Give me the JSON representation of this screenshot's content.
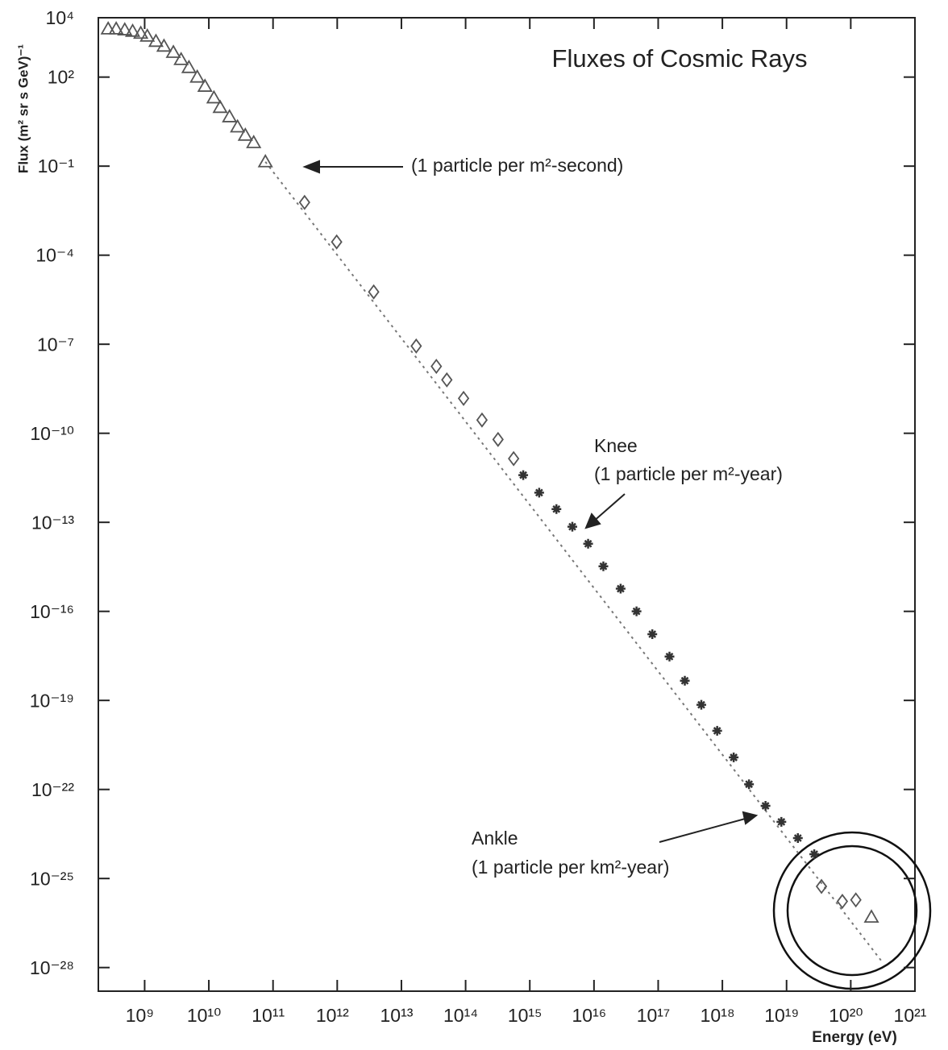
{
  "chart_data": {
    "type": "scatter",
    "title": "Fluxes of Cosmic Rays",
    "x_label": "Energy (eV)",
    "y_label": "Flux (m² sr s GeV)⁻¹",
    "log_x": true,
    "log_y": true,
    "xlim": [
      190000000.0,
      1e+21
    ],
    "ylim": [
      1.6e-29,
      10000.0
    ],
    "xticks": [
      {
        "value": 1000000000.0,
        "label": "10⁹"
      },
      {
        "value": 10000000000.0,
        "label": "10¹⁰"
      },
      {
        "value": 100000000000.0,
        "label": "10¹¹"
      },
      {
        "value": 1000000000000.0,
        "label": "10¹²"
      },
      {
        "value": 10000000000000.0,
        "label": "10¹³"
      },
      {
        "value": 100000000000000.0,
        "label": "10¹⁴"
      },
      {
        "value": 1000000000000000.0,
        "label": "10¹⁵"
      },
      {
        "value": 1e+16,
        "label": "10¹⁶"
      },
      {
        "value": 1e+17,
        "label": "10¹⁷"
      },
      {
        "value": 1e+18,
        "label": "10¹⁸"
      },
      {
        "value": 1e+19,
        "label": "10¹⁹"
      },
      {
        "value": 1e+20,
        "label": "10²⁰"
      },
      {
        "value": 1e+21,
        "label": "10²¹"
      }
    ],
    "yticks": [
      {
        "value": 10000.0,
        "label": "10⁴"
      },
      {
        "value": 100.0,
        "label": "10²"
      },
      {
        "value": 0.1,
        "label": "10⁻¹"
      },
      {
        "value": 0.0001,
        "label": "10⁻⁴"
      },
      {
        "value": 1e-07,
        "label": "10⁻⁷"
      },
      {
        "value": 1e-10,
        "label": "10⁻¹⁰"
      },
      {
        "value": 1e-13,
        "label": "10⁻¹³"
      },
      {
        "value": 1e-16,
        "label": "10⁻¹⁶"
      },
      {
        "value": 1e-19,
        "label": "10⁻¹⁹"
      },
      {
        "value": 1e-22,
        "label": "10⁻²²"
      },
      {
        "value": 1e-25,
        "label": "10⁻²⁵"
      },
      {
        "value": 1e-28,
        "label": "10⁻²⁸"
      }
    ],
    "series": [
      {
        "marker": "triangle",
        "color": "#555555",
        "x": [
          270000000.0,
          360000000.0,
          490000000.0,
          650000000.0,
          870000000.0,
          1100000000.0,
          1500000000.0,
          2000000000.0,
          2800000000.0,
          3700000000.0,
          4900000000.0,
          6600000000.0,
          8700000000.0,
          12000000000.0,
          15000000000.0,
          21000000000.0,
          28000000000.0,
          37000000000.0,
          50000000000.0,
          76000000000.0,
          2.1e+20
        ],
        "values": [
          4200,
          4200,
          3900,
          3500,
          3000,
          2400,
          1600,
          1100,
          680,
          390,
          210,
          100,
          49,
          20,
          9.5,
          4.6,
          2.1,
          1.1,
          0.62,
          0.14,
          5e-27
        ]
      },
      {
        "marker": "diamond",
        "color": "#555555",
        "x": [
          310000000000.0,
          980000000000.0,
          3700000000000.0,
          17000000000000.0,
          35000000000000.0,
          51000000000000.0,
          93000000000000.0,
          180000000000000.0,
          320000000000000.0,
          560000000000000.0,
          3.5e+19,
          7.4e+19,
          1.2e+20
        ],
        "values": [
          0.006,
          0.00028,
          5.8e-06,
          8.7e-08,
          1.8e-08,
          6.3e-09,
          1.5e-09,
          2.8e-10,
          6.2e-11,
          1.4e-11,
          5.4e-26,
          1.7e-26,
          1.9e-26
        ]
      },
      {
        "marker": "cross",
        "color": "#333333",
        "x": [
          790000000000000.0,
          1400000000000000.0,
          2600000000000000.0,
          4600000000000000.0,
          8100000000000000.0,
          1.4e+16,
          2.6e+16,
          4.6e+16,
          8.1e+16,
          1.5e+17,
          2.6e+17,
          4.7e+17,
          8.3e+17,
          1.5e+18,
          2.6e+18,
          4.7e+18,
          8.3e+18,
          1.5e+19,
          2.7e+19
        ],
        "values": [
          3.9e-12,
          1e-12,
          2.8e-13,
          7.1e-14,
          1.9e-14,
          3.3e-15,
          5.8e-16,
          1e-16,
          1.7e-17,
          3e-18,
          4.6e-19,
          7.1e-20,
          9.5e-21,
          1.2e-21,
          1.5e-22,
          2.8e-23,
          8.1e-24,
          2.3e-24,
          6.6e-25
        ]
      }
    ],
    "fit_line": {
      "color": "#777777",
      "x": [
        76000000000.0,
        3.2e+20
      ],
      "values": [
        0.14,
        1.4e-28
      ]
    },
    "annotations": [
      {
        "text": "(1 particle per m²-second)"
      },
      {
        "text": "Knee"
      },
      {
        "text": "(1 particle per m²-year)"
      },
      {
        "text": "Ankle"
      },
      {
        "text": "(1 particle per km²-year)"
      }
    ]
  }
}
